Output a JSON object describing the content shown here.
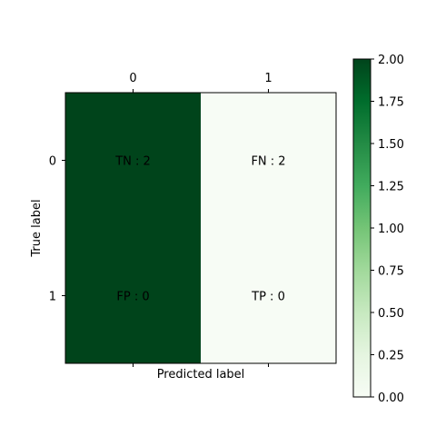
{
  "chart_data": {
    "type": "heatmap",
    "title": "",
    "xlabel": "Predicted label",
    "ylabel": "True label",
    "x_tick_labels": [
      "0",
      "1"
    ],
    "y_tick_labels": [
      "0",
      "1"
    ],
    "values": [
      [
        2,
        0
      ],
      [
        2,
        0
      ]
    ],
    "cell_labels": [
      [
        "TN : 2",
        "FN : 2"
      ],
      [
        "FP : 0",
        "TP : 0"
      ]
    ],
    "x_axis_position": "top",
    "grid": false,
    "colormap": "Greens",
    "colormap_stops": [
      "#f7fcf5",
      "#e5f5e0",
      "#c7e9c0",
      "#a1d99b",
      "#74c476",
      "#41ab5d",
      "#238b45",
      "#006d2c",
      "#00441b"
    ],
    "colorbar": {
      "range": [
        0,
        2
      ],
      "tick_labels": [
        "0.00",
        "0.25",
        "0.50",
        "0.75",
        "1.00",
        "1.25",
        "1.50",
        "1.75",
        "2.00"
      ],
      "placement": "right"
    }
  }
}
